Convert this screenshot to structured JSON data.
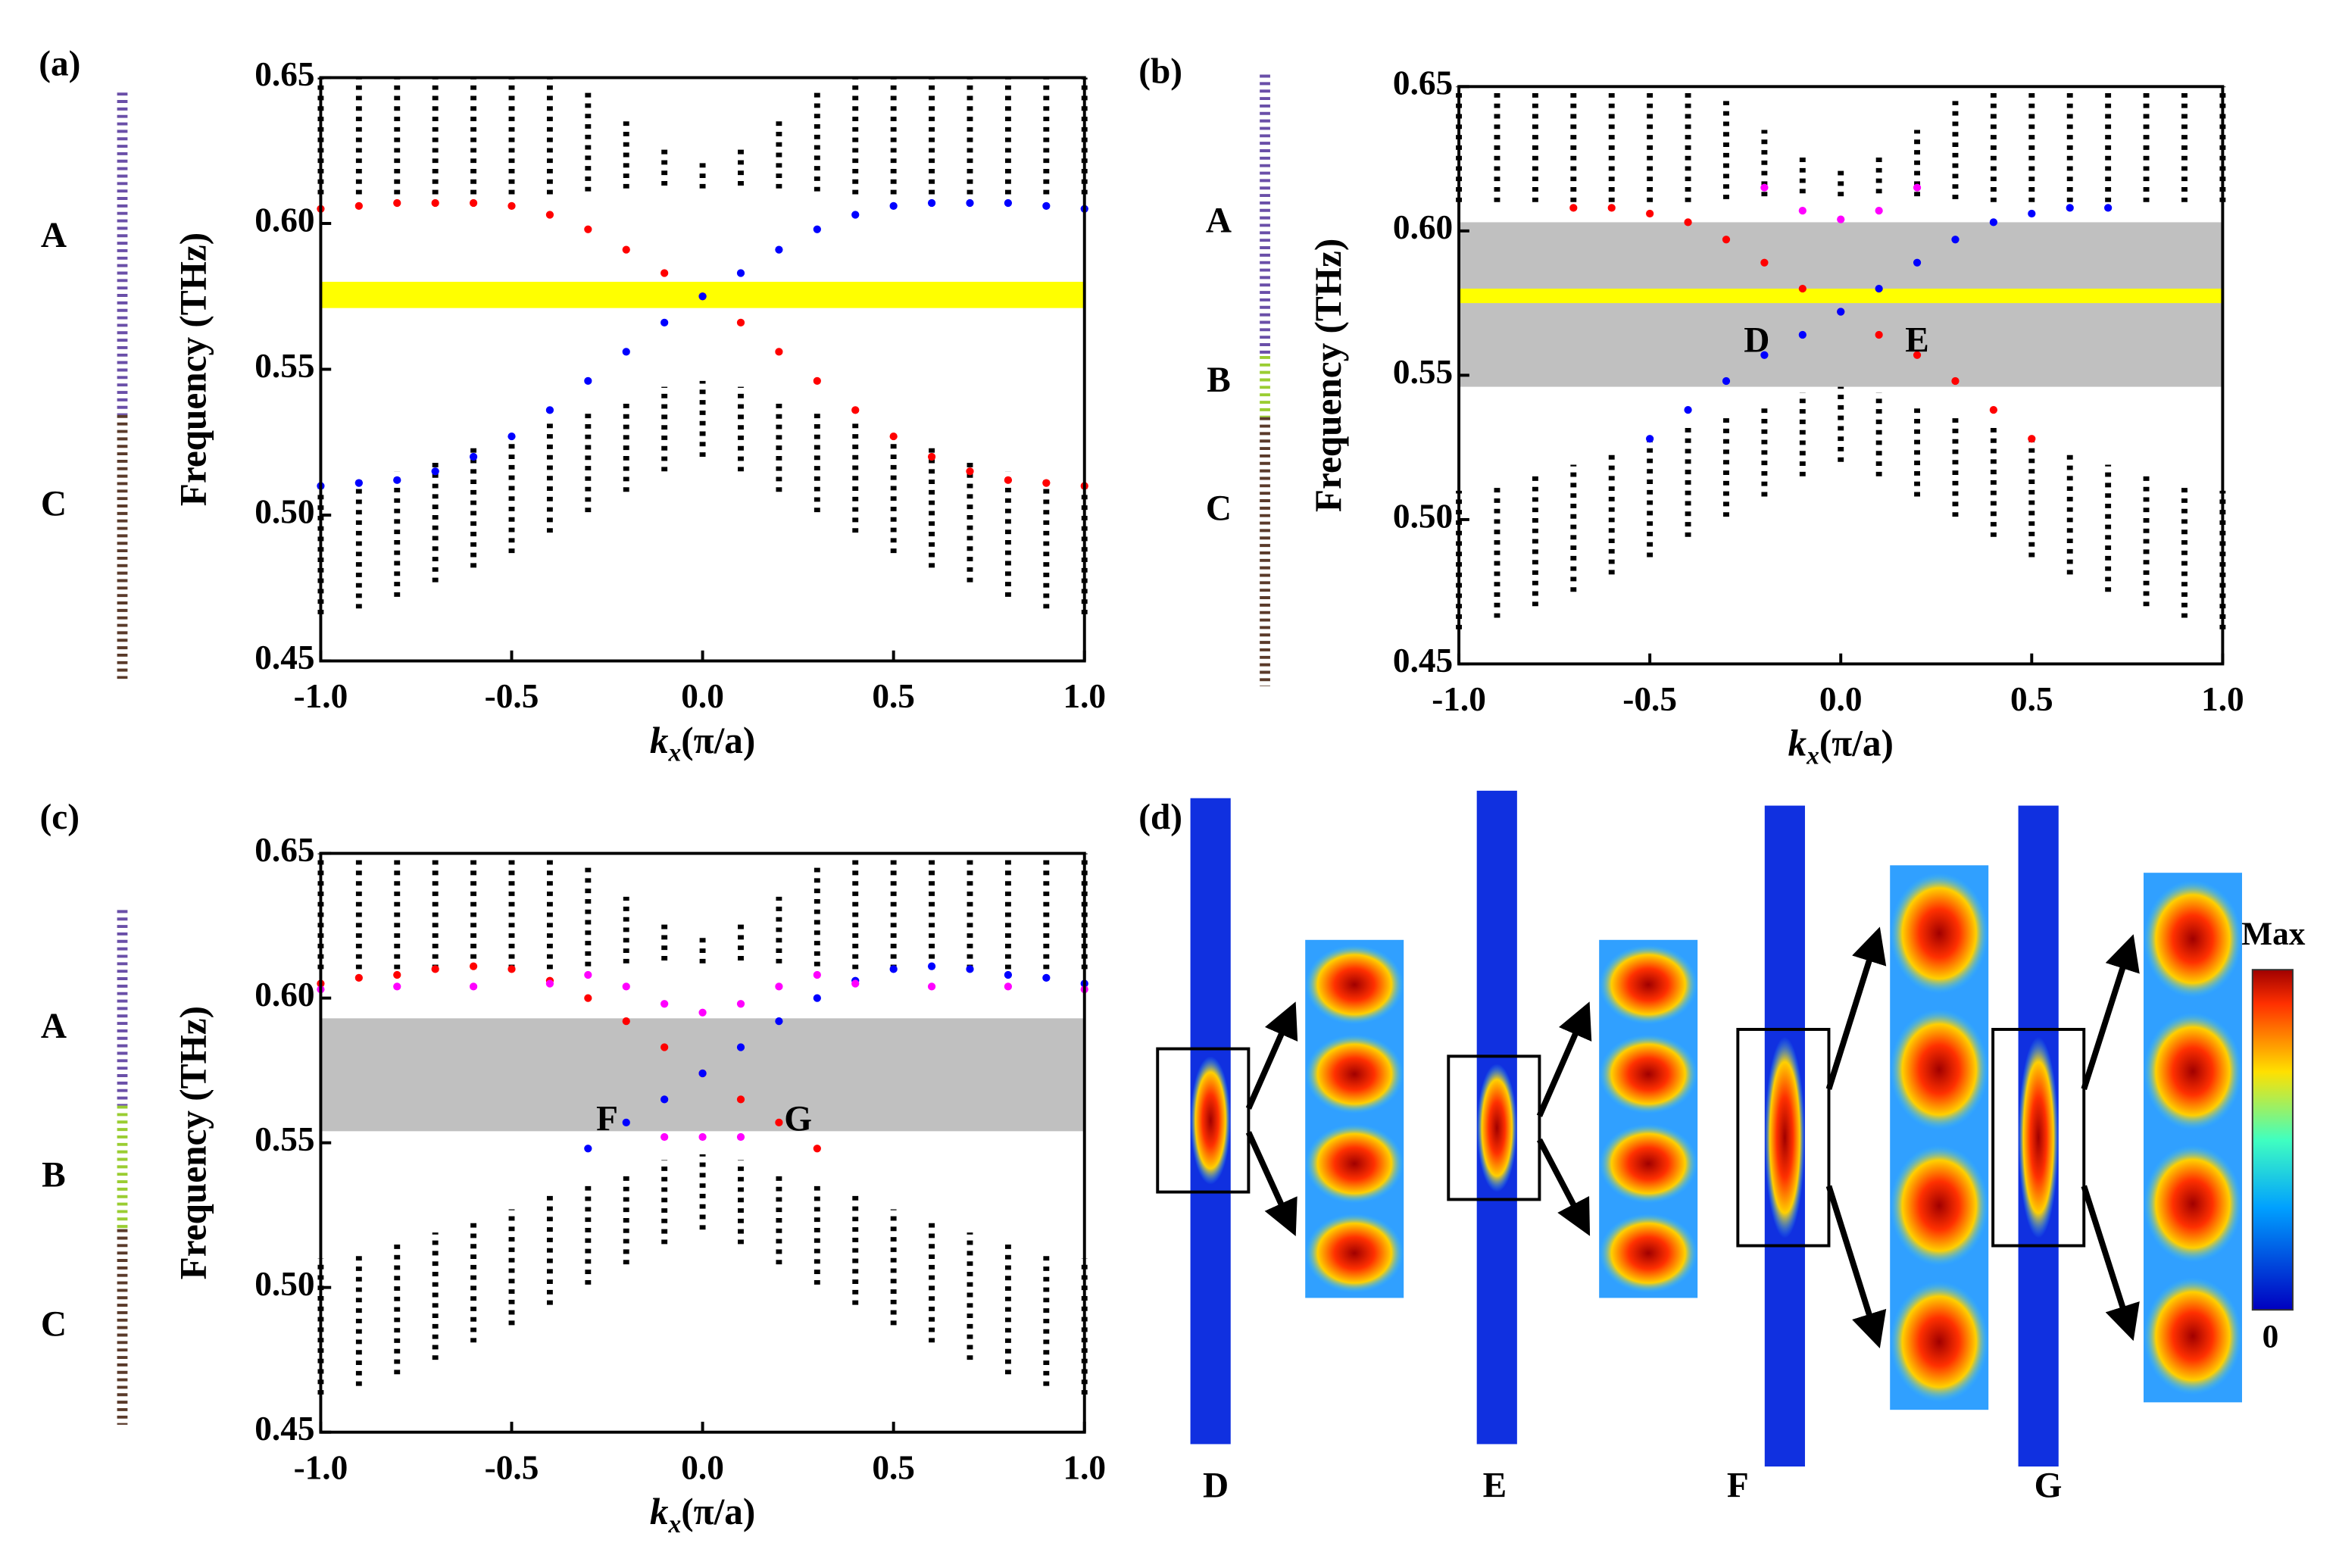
{
  "chart_data": [
    {
      "type": "scatter",
      "panel_label": "(a)",
      "y_label": "Frequency (THz)",
      "x_label": {
        "symbol": "k",
        "subscript": "x",
        "unit": "(π/a)"
      },
      "structure_labels": [
        "A",
        "C"
      ],
      "xlim": [
        -1,
        1
      ],
      "ylim": [
        0.45,
        0.65
      ],
      "xticks": [
        {
          "value": -1,
          "label": "-1.0"
        },
        -0.5,
        {
          "value": 0,
          "label": "0.0"
        },
        0.5,
        {
          "value": 1,
          "label": "1.0"
        }
      ],
      "yticks": [
        0.45,
        {
          "value": 0.5,
          "label": "0.50"
        },
        0.55,
        {
          "value": 0.6,
          "label": "0.60"
        },
        0.65
      ],
      "regions": [
        {
          "color": "#ffff00",
          "ylim": [
            0.571,
            0.58
          ]
        }
      ],
      "bulk_bands": [
        {
          "color": "#000000",
          "x": [
            -1,
            -0.9,
            -0.8,
            -0.7,
            -0.6,
            -0.5,
            -0.4,
            -0.3,
            -0.2,
            -0.1,
            0,
            0.1,
            0.2,
            0.3,
            0.4,
            0.5,
            0.6,
            0.7,
            0.8,
            0.9,
            1
          ],
          "low": [
            0.61,
            0.61,
            0.61,
            0.61,
            0.61,
            0.61,
            0.61,
            0.611,
            0.612,
            0.613,
            0.612,
            0.613,
            0.612,
            0.611,
            0.61,
            0.61,
            0.61,
            0.61,
            0.61,
            0.61,
            0.61
          ],
          "high": [
            0.65,
            0.65,
            0.65,
            0.65,
            0.65,
            0.65,
            0.65,
            0.645,
            0.635,
            0.627,
            0.622,
            0.627,
            0.635,
            0.645,
            0.65,
            0.65,
            0.65,
            0.65,
            0.65,
            0.65,
            0.65
          ]
        },
        {
          "color": "#000000",
          "x": [
            -1,
            -0.9,
            -0.8,
            -0.7,
            -0.6,
            -0.5,
            -0.4,
            -0.3,
            -0.2,
            -0.1,
            0,
            0.1,
            0.2,
            0.3,
            0.4,
            0.5,
            0.6,
            0.7,
            0.8,
            0.9,
            1
          ],
          "low": [
            0.466,
            0.468,
            0.472,
            0.477,
            0.482,
            0.487,
            0.494,
            0.501,
            0.508,
            0.515,
            0.52,
            0.515,
            0.508,
            0.501,
            0.494,
            0.487,
            0.482,
            0.477,
            0.472,
            0.468,
            0.466
          ],
          "high": [
            0.51,
            0.512,
            0.515,
            0.519,
            0.523,
            0.527,
            0.532,
            0.536,
            0.54,
            0.544,
            0.546,
            0.544,
            0.54,
            0.536,
            0.532,
            0.527,
            0.523,
            0.519,
            0.515,
            0.512,
            0.51
          ]
        }
      ],
      "series": [
        {
          "color": "#ff0000",
          "x": [
            -1,
            -0.9,
            -0.8,
            -0.7,
            -0.6,
            -0.5,
            -0.4,
            -0.3,
            -0.2,
            -0.1,
            0,
            0.1,
            0.2,
            0.3,
            0.4,
            0.5,
            0.6,
            0.7,
            0.8,
            0.9,
            1
          ],
          "values": [
            0.605,
            0.606,
            0.607,
            0.607,
            0.607,
            0.606,
            0.603,
            0.598,
            0.591,
            0.583,
            0.575,
            0.566,
            0.556,
            0.546,
            0.536,
            0.527,
            0.52,
            0.515,
            0.512,
            0.511,
            0.51
          ]
        },
        {
          "color": "#0000ff",
          "x": [
            -1,
            -0.9,
            -0.8,
            -0.7,
            -0.6,
            -0.5,
            -0.4,
            -0.3,
            -0.2,
            -0.1,
            0,
            0.1,
            0.2,
            0.3,
            0.4,
            0.5,
            0.6,
            0.7,
            0.8,
            0.9,
            1
          ],
          "values": [
            0.51,
            0.511,
            0.512,
            0.515,
            0.52,
            0.527,
            0.536,
            0.546,
            0.556,
            0.566,
            0.575,
            0.583,
            0.591,
            0.598,
            0.603,
            0.606,
            0.607,
            0.607,
            0.607,
            0.606,
            0.605
          ]
        }
      ],
      "annotations": []
    },
    {
      "type": "scatter",
      "panel_label": "(b)",
      "y_label": "Frequency (THz)",
      "x_label": {
        "symbol": "k",
        "subscript": "x",
        "unit": "(π/a)"
      },
      "structure_labels": [
        "A",
        "B",
        "C"
      ],
      "xlim": [
        -1,
        1
      ],
      "ylim": [
        0.45,
        0.65
      ],
      "xticks": [
        {
          "value": -1,
          "label": "-1.0"
        },
        -0.5,
        {
          "value": 0,
          "label": "0.0"
        },
        0.5,
        {
          "value": 1,
          "label": "1.0"
        }
      ],
      "yticks": [
        0.45,
        {
          "value": 0.5,
          "label": "0.50"
        },
        0.55,
        {
          "value": 0.6,
          "label": "0.60"
        },
        0.65
      ],
      "regions": [
        {
          "color": "#c0c0c0",
          "ylim": [
            0.546,
            0.603
          ]
        },
        {
          "color": "#ffff00",
          "ylim": [
            0.575,
            0.58
          ]
        }
      ],
      "bulk_bands": [
        {
          "color": "#000000",
          "x": [
            -1,
            -0.9,
            -0.8,
            -0.7,
            -0.6,
            -0.5,
            -0.4,
            -0.3,
            -0.2,
            -0.1,
            0,
            0.1,
            0.2,
            0.3,
            0.4,
            0.5,
            0.6,
            0.7,
            0.8,
            0.9,
            1
          ],
          "low": [
            0.61,
            0.61,
            0.61,
            0.61,
            0.61,
            0.61,
            0.61,
            0.611,
            0.612,
            0.613,
            0.612,
            0.613,
            0.612,
            0.611,
            0.61,
            0.61,
            0.61,
            0.61,
            0.61,
            0.61,
            0.61
          ],
          "high": [
            0.65,
            0.65,
            0.65,
            0.65,
            0.65,
            0.65,
            0.65,
            0.645,
            0.635,
            0.627,
            0.622,
            0.627,
            0.635,
            0.645,
            0.65,
            0.65,
            0.65,
            0.65,
            0.65,
            0.65,
            0.65
          ]
        },
        {
          "color": "#000000",
          "x": [
            -1,
            -0.9,
            -0.8,
            -0.7,
            -0.6,
            -0.5,
            -0.4,
            -0.3,
            -0.2,
            -0.1,
            0,
            0.1,
            0.2,
            0.3,
            0.4,
            0.5,
            0.6,
            0.7,
            0.8,
            0.9,
            1
          ],
          "low": [
            0.462,
            0.466,
            0.47,
            0.475,
            0.481,
            0.487,
            0.494,
            0.501,
            0.508,
            0.515,
            0.52,
            0.515,
            0.508,
            0.501,
            0.494,
            0.487,
            0.481,
            0.475,
            0.47,
            0.466,
            0.462
          ],
          "high": [
            0.51,
            0.512,
            0.515,
            0.519,
            0.523,
            0.527,
            0.532,
            0.536,
            0.54,
            0.544,
            0.546,
            0.544,
            0.54,
            0.536,
            0.532,
            0.527,
            0.523,
            0.519,
            0.515,
            0.512,
            0.51
          ]
        }
      ],
      "series": [
        {
          "color": "#ff0000",
          "x": [
            -0.7,
            -0.6,
            -0.5,
            -0.4,
            -0.3,
            -0.2,
            -0.1,
            0,
            0.1,
            0.2,
            0.3,
            0.4,
            0.5
          ],
          "values": [
            0.608,
            0.608,
            0.606,
            0.603,
            0.597,
            0.589,
            0.58,
            0.572,
            0.564,
            0.557,
            0.548,
            0.538,
            0.528
          ]
        },
        {
          "color": "#0000ff",
          "x": [
            -0.5,
            -0.4,
            -0.3,
            -0.2,
            -0.1,
            0,
            0.1,
            0.2,
            0.3,
            0.4,
            0.5,
            0.6,
            0.7
          ],
          "values": [
            0.528,
            0.538,
            0.548,
            0.557,
            0.564,
            0.572,
            0.58,
            0.589,
            0.597,
            0.603,
            0.606,
            0.608,
            0.608
          ]
        },
        {
          "color": "#ff00ff",
          "x": [
            -0.2,
            -0.1,
            0,
            0.1,
            0.2
          ],
          "values": [
            0.615,
            0.607,
            0.604,
            0.607,
            0.615
          ]
        }
      ],
      "annotations": [
        {
          "text": "D",
          "x": -0.22,
          "y": 0.561
        },
        {
          "text": "E",
          "x": 0.2,
          "y": 0.561
        }
      ]
    },
    {
      "type": "scatter",
      "panel_label": "(c)",
      "y_label": "Frequency (THz)",
      "x_label": {
        "symbol": "k",
        "subscript": "x",
        "unit": "(π/a)"
      },
      "structure_labels": [
        "A",
        "B",
        "C"
      ],
      "xlim": [
        -1,
        1
      ],
      "ylim": [
        0.45,
        0.65
      ],
      "xticks": [
        {
          "value": -1,
          "label": "-1.0"
        },
        -0.5,
        {
          "value": 0,
          "label": "0.0"
        },
        0.5,
        {
          "value": 1,
          "label": "1.0"
        }
      ],
      "yticks": [
        0.45,
        {
          "value": 0.5,
          "label": "0.50"
        },
        0.55,
        {
          "value": 0.6,
          "label": "0.60"
        },
        0.65
      ],
      "regions": [
        {
          "color": "#c0c0c0",
          "ylim": [
            0.554,
            0.593
          ]
        }
      ],
      "bulk_bands": [
        {
          "color": "#000000",
          "x": [
            -1,
            -0.9,
            -0.8,
            -0.7,
            -0.6,
            -0.5,
            -0.4,
            -0.3,
            -0.2,
            -0.1,
            0,
            0.1,
            0.2,
            0.3,
            0.4,
            0.5,
            0.6,
            0.7,
            0.8,
            0.9,
            1
          ],
          "low": [
            0.61,
            0.61,
            0.61,
            0.61,
            0.61,
            0.61,
            0.61,
            0.611,
            0.612,
            0.613,
            0.612,
            0.613,
            0.612,
            0.611,
            0.61,
            0.61,
            0.61,
            0.61,
            0.61,
            0.61,
            0.61
          ],
          "high": [
            0.65,
            0.65,
            0.65,
            0.65,
            0.65,
            0.65,
            0.65,
            0.645,
            0.635,
            0.627,
            0.622,
            0.627,
            0.635,
            0.645,
            0.65,
            0.65,
            0.65,
            0.65,
            0.65,
            0.65,
            0.65
          ]
        },
        {
          "color": "#000000",
          "x": [
            -1,
            -0.9,
            -0.8,
            -0.7,
            -0.6,
            -0.5,
            -0.4,
            -0.3,
            -0.2,
            -0.1,
            0,
            0.1,
            0.2,
            0.3,
            0.4,
            0.5,
            0.6,
            0.7,
            0.8,
            0.9,
            1
          ],
          "low": [
            0.463,
            0.466,
            0.47,
            0.475,
            0.481,
            0.487,
            0.494,
            0.501,
            0.508,
            0.515,
            0.52,
            0.515,
            0.508,
            0.501,
            0.494,
            0.487,
            0.481,
            0.475,
            0.47,
            0.466,
            0.463
          ],
          "high": [
            0.51,
            0.512,
            0.515,
            0.519,
            0.523,
            0.527,
            0.532,
            0.536,
            0.54,
            0.544,
            0.546,
            0.544,
            0.54,
            0.536,
            0.532,
            0.527,
            0.523,
            0.519,
            0.515,
            0.512,
            0.51
          ]
        }
      ],
      "series": [
        {
          "color": "#ff0000",
          "x": [
            -1,
            -0.9,
            -0.8,
            -0.7,
            -0.6,
            -0.5,
            -0.4,
            -0.3,
            -0.2,
            -0.1,
            0,
            0.1,
            0.2,
            0.3
          ],
          "values": [
            0.605,
            0.607,
            0.608,
            0.61,
            0.611,
            0.61,
            0.606,
            0.6,
            0.592,
            0.583,
            0.574,
            0.565,
            0.557,
            0.548
          ]
        },
        {
          "color": "#0000ff",
          "x": [
            -0.3,
            -0.2,
            -0.1,
            0,
            0.1,
            0.2,
            0.3,
            0.4,
            0.5,
            0.6,
            0.7,
            0.8,
            0.9,
            1
          ],
          "values": [
            0.548,
            0.557,
            0.565,
            0.574,
            0.583,
            0.592,
            0.6,
            0.606,
            0.61,
            0.611,
            0.61,
            0.608,
            0.607,
            0.605
          ]
        },
        {
          "color": "#ff00ff",
          "x": [
            -1,
            -0.8,
            -0.6,
            -0.4,
            -0.3,
            -0.2,
            -0.1,
            0,
            0.1,
            0.2,
            0.3,
            0.4,
            0.6,
            0.8,
            1
          ],
          "values": [
            0.603,
            0.604,
            0.604,
            0.605,
            0.608,
            0.604,
            0.598,
            0.595,
            0.598,
            0.604,
            0.608,
            0.605,
            0.604,
            0.604,
            0.603
          ]
        },
        {
          "color": "#ff00ff",
          "x": [
            -0.1,
            0,
            0.1
          ],
          "values": [
            0.552,
            0.552,
            0.552
          ]
        }
      ],
      "annotations": [
        {
          "text": "F",
          "x": -0.25,
          "y": 0.557
        },
        {
          "text": "G",
          "x": 0.25,
          "y": 0.557
        }
      ]
    }
  ],
  "field_panel": {
    "panel_label": "(d)",
    "maps": [
      "D",
      "E",
      "F",
      "G"
    ],
    "colorbar_max": "Max",
    "colorbar_min": "0"
  }
}
